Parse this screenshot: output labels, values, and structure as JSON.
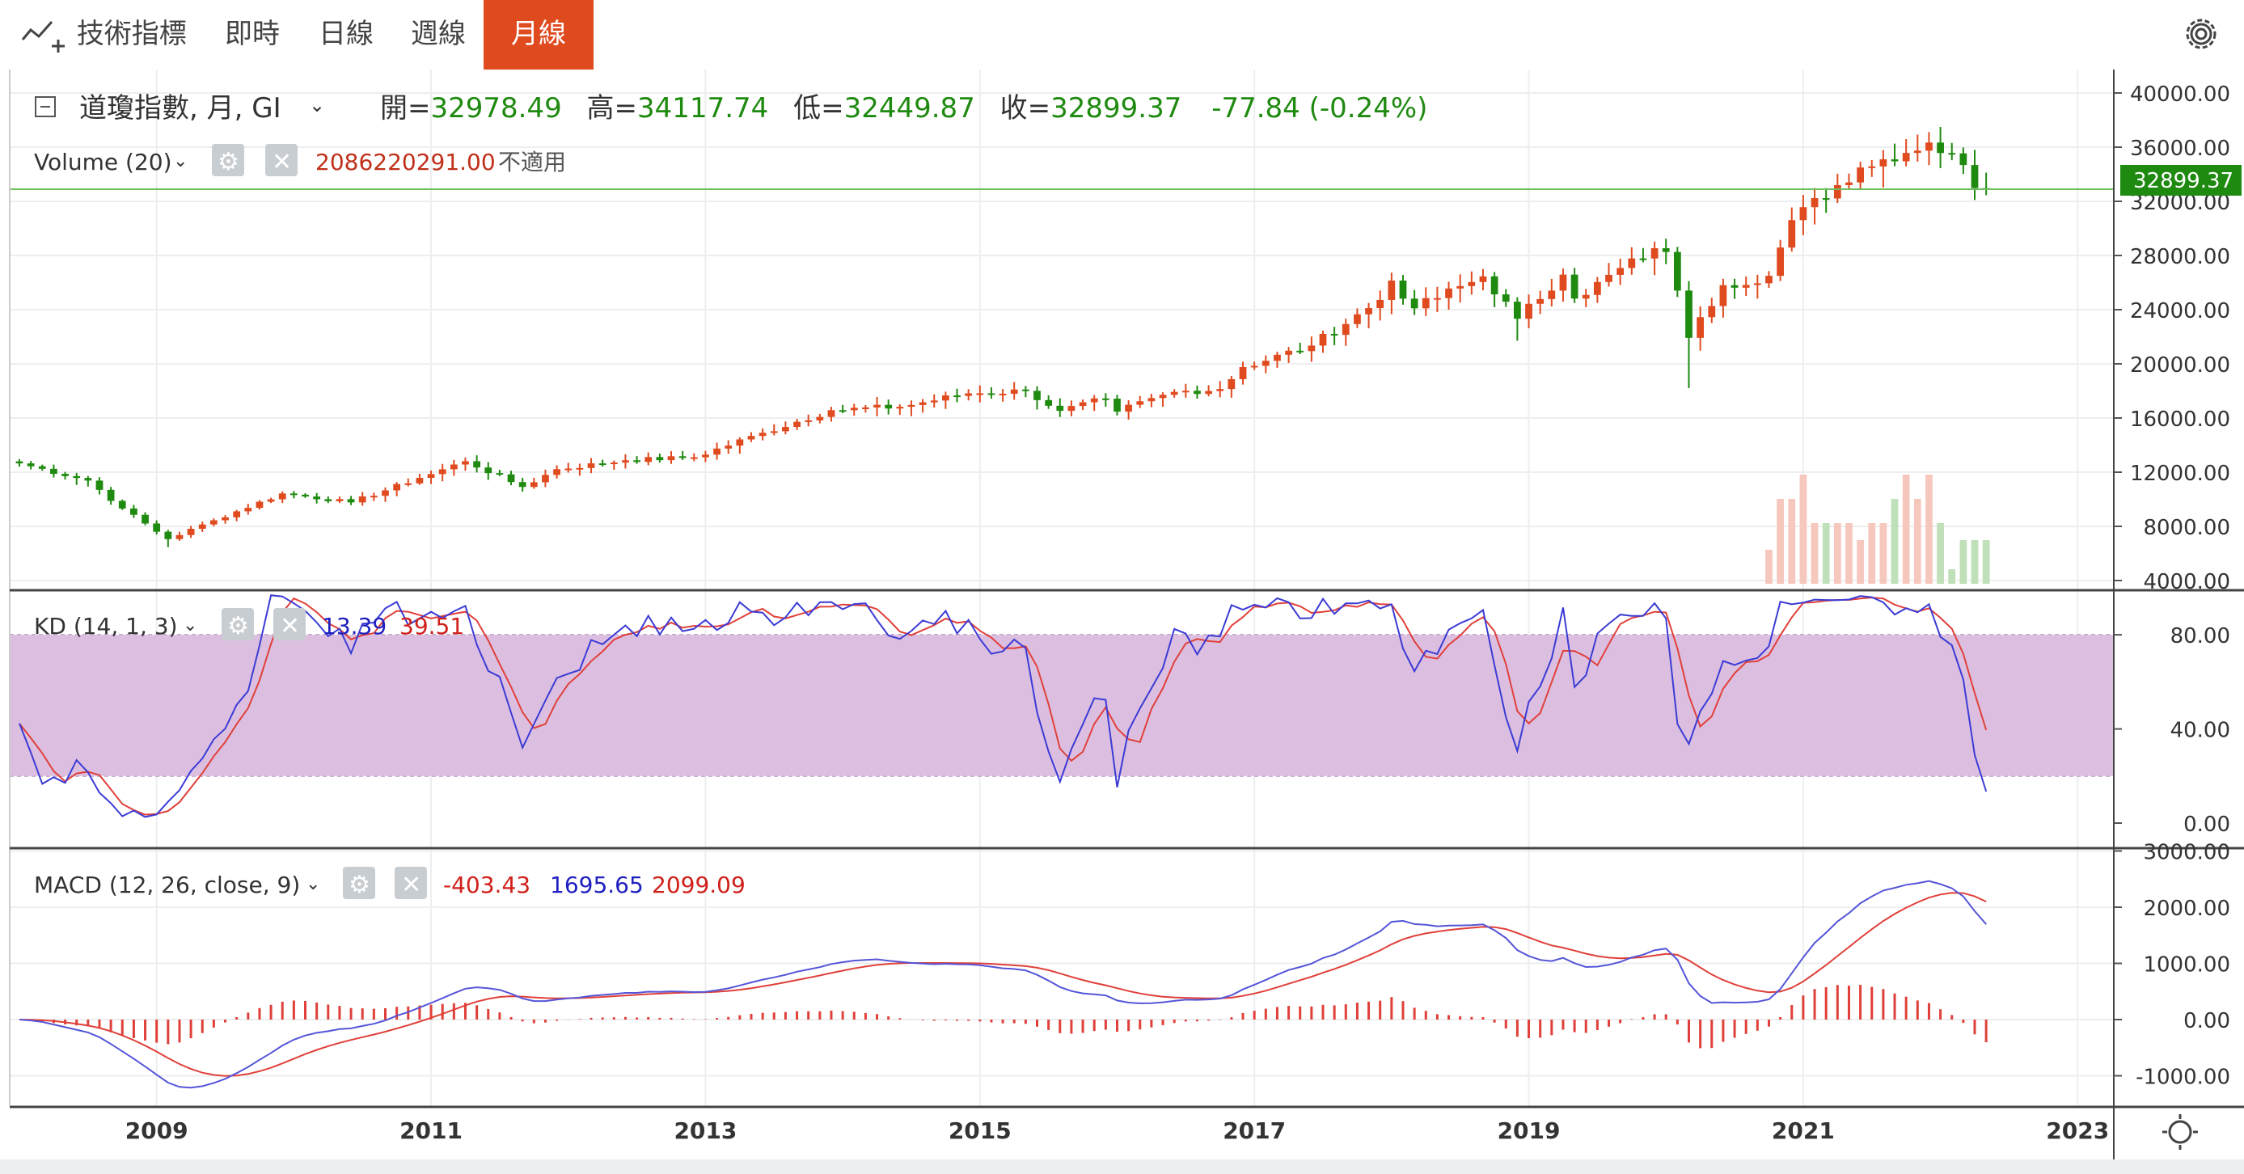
{
  "toolbar": {
    "indicators_label": "技術指標",
    "tabs": [
      {
        "label": "即時",
        "active": false
      },
      {
        "label": "日線",
        "active": false
      },
      {
        "label": "週線",
        "active": false
      },
      {
        "label": "月線",
        "active": true
      }
    ],
    "accent_color": "#e04a1f"
  },
  "legend": {
    "symbol": "道瓊指數, 月, GI",
    "open_label": "開=",
    "open": "32978.49",
    "high_label": "高=",
    "high": "34117.74",
    "low_label": "低=",
    "low": "32449.87",
    "close_label": "收=",
    "close": "32899.37",
    "change": "-77.84 (-0.24%)",
    "value_color": "#1f8a10"
  },
  "volume": {
    "label": "Volume (20)",
    "value": "2086220291.00",
    "extra": "不適用"
  },
  "kd": {
    "label": "KD (14, 1, 3)",
    "k_value": "13.39",
    "d_value": "39.51"
  },
  "macd": {
    "label": "MACD (12, 26, close, 9)",
    "hist_value": "-403.43",
    "macd_value": "1695.65",
    "signal_value": "2099.09"
  },
  "price_axis_labels": [
    "40000.00",
    "36000.00",
    "32000.00",
    "28000.00",
    "24000.00",
    "20000.00",
    "16000.00",
    "12000.00",
    "8000.00",
    "4000.00"
  ],
  "last_price_tag": "32899.37",
  "kd_axis_labels": [
    "80.00",
    "40.00",
    "0.00"
  ],
  "macd_axis_labels": [
    "3000.00",
    "2000.00",
    "1000.00",
    "0.00",
    "-1000.00"
  ],
  "x_axis_labels": [
    "2009",
    "2011",
    "2013",
    "2015",
    "2017",
    "2019",
    "2021",
    "2023"
  ],
  "chart_data": {
    "type": "candlestick",
    "interval": "monthly",
    "up_color": "#e04a1f",
    "down_color": "#1f8a10",
    "price_range": [
      4000,
      40000
    ],
    "price_anchors": [
      [
        "2008-01",
        12650
      ],
      [
        "2008-07",
        11380
      ],
      [
        "2008-10",
        9320
      ],
      [
        "2009-02",
        7060
      ],
      [
        "2009-06",
        8450
      ],
      [
        "2009-12",
        10430
      ],
      [
        "2010-06",
        9770
      ],
      [
        "2010-12",
        11580
      ],
      [
        "2011-04",
        12810
      ],
      [
        "2011-09",
        10910
      ],
      [
        "2011-12",
        12220
      ],
      [
        "2012-06",
        12880
      ],
      [
        "2012-12",
        13100
      ],
      [
        "2013-06",
        14910
      ],
      [
        "2013-12",
        16580
      ],
      [
        "2014-06",
        16830
      ],
      [
        "2014-12",
        17820
      ],
      [
        "2015-05",
        18010
      ],
      [
        "2015-08",
        16530
      ],
      [
        "2015-12",
        17430
      ],
      [
        "2016-01",
        16470
      ],
      [
        "2016-06",
        17930
      ],
      [
        "2016-10",
        18140
      ],
      [
        "2016-12",
        19760
      ],
      [
        "2017-06",
        21350
      ],
      [
        "2017-12",
        24720
      ],
      [
        "2018-01",
        26150
      ],
      [
        "2018-03",
        24100
      ],
      [
        "2018-09",
        26460
      ],
      [
        "2018-12",
        23330
      ],
      [
        "2019-04",
        26590
      ],
      [
        "2019-05",
        24820
      ],
      [
        "2019-12",
        28540
      ],
      [
        "2020-01",
        28260
      ],
      [
        "2020-02",
        25410
      ],
      [
        "2020-03",
        21920
      ],
      [
        "2020-06",
        25810
      ],
      [
        "2020-10",
        26500
      ],
      [
        "2020-12",
        30610
      ],
      [
        "2021-06",
        34500
      ],
      [
        "2021-12",
        36340
      ],
      [
        "2022-03",
        34680
      ],
      [
        "2022-04",
        32980
      ],
      [
        "2022-05",
        32899
      ]
    ],
    "volume_bars_from": "2020-10",
    "kd": {
      "range": [
        0,
        100
      ],
      "zone": [
        20,
        80
      ],
      "last_k": 13.39,
      "last_d": 39.51,
      "k_color": "#3b3bd6",
      "d_color": "#e0403a",
      "zone_color": "#dcbfe0"
    },
    "macd": {
      "params": [
        12,
        26,
        9
      ],
      "range": [
        -1000,
        3000
      ],
      "last_hist": -403.43,
      "last_macd": 1695.65,
      "last_signal": 2099.09,
      "macd_color": "#5555d8",
      "signal_color": "#e0403a",
      "hist_color": "#e0403a"
    },
    "x_range": [
      "2008-01",
      "2023-01"
    ]
  }
}
